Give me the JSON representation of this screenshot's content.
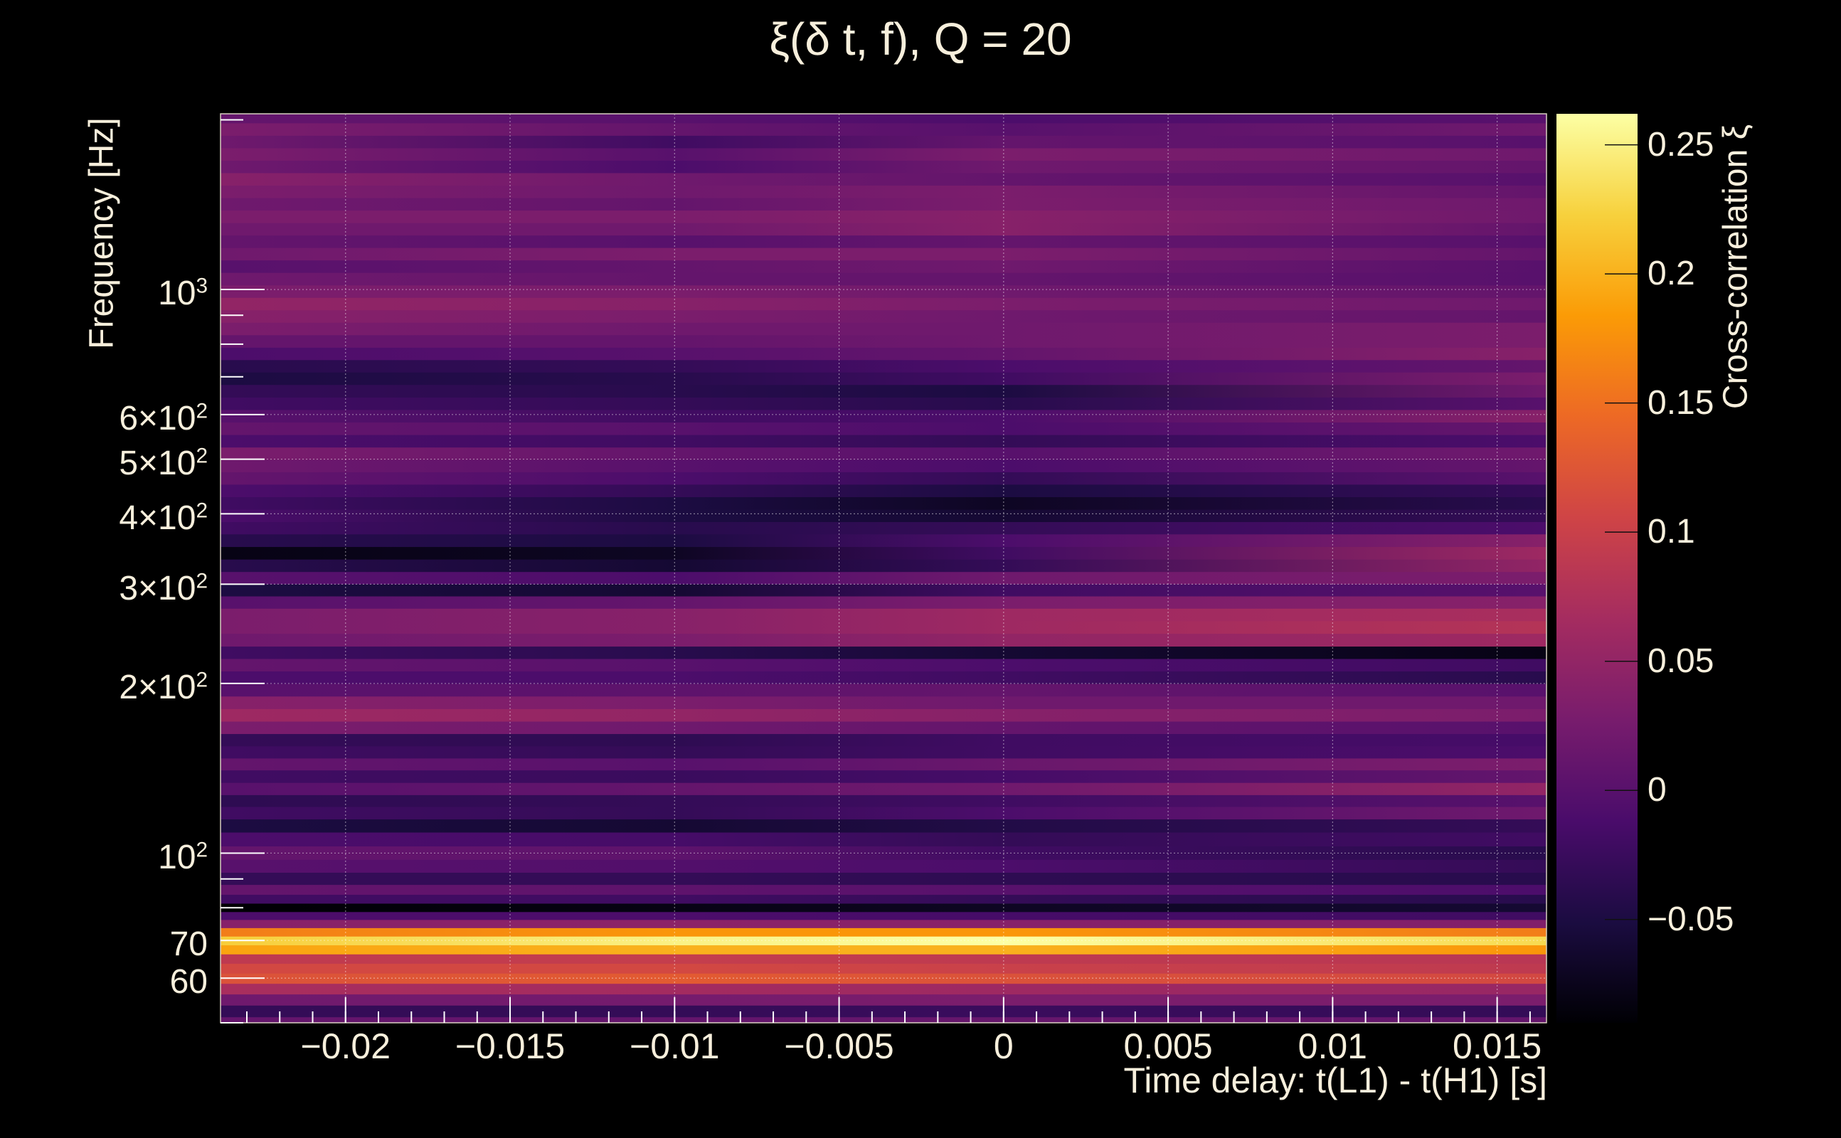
{
  "chart_data": {
    "type": "heatmap",
    "title": "ξ(δ t, f), Q = 20",
    "xlabel": "Time delay: t(L1) - t(H1) [s]",
    "ylabel": "Frequency [Hz]",
    "colorbar_label": "Cross-correlation ξ",
    "x_range": [
      -0.0238,
      0.0165
    ],
    "y_range": [
      50,
      2050
    ],
    "y_scale": "log",
    "z_range": [
      -0.09,
      0.262
    ],
    "colormap": [
      "#000004",
      "#1b0c41",
      "#4a0c6b",
      "#781c6d",
      "#a52c60",
      "#cf4446",
      "#ed6925",
      "#fb9b06",
      "#f7d13d",
      "#fcffa4"
    ],
    "grid": true,
    "x_ticks": [
      {
        "value": -0.02,
        "label": "−0.02"
      },
      {
        "value": -0.015,
        "label": "−0.015"
      },
      {
        "value": -0.01,
        "label": "−0.01"
      },
      {
        "value": -0.005,
        "label": "−0.005"
      },
      {
        "value": 0,
        "label": "0"
      },
      {
        "value": 0.005,
        "label": "0.005"
      },
      {
        "value": 0.01,
        "label": "0.01"
      },
      {
        "value": 0.015,
        "label": "0.015"
      }
    ],
    "y_ticks": [
      {
        "value": 60,
        "base": "60",
        "exp": ""
      },
      {
        "value": 70,
        "base": "70",
        "exp": ""
      },
      {
        "value": 100,
        "base": "10",
        "exp": "2"
      },
      {
        "value": 200,
        "base": "2×10",
        "exp": "2"
      },
      {
        "value": 300,
        "base": "3×10",
        "exp": "2"
      },
      {
        "value": 400,
        "base": "4×10",
        "exp": "2"
      },
      {
        "value": 500,
        "base": "5×10",
        "exp": "2"
      },
      {
        "value": 600,
        "base": "6×10",
        "exp": "2"
      },
      {
        "value": 1000,
        "base": "10",
        "exp": "3"
      }
    ],
    "colorbar_ticks": [
      {
        "value": -0.05,
        "label": "−0.05"
      },
      {
        "value": 0,
        "label": "0"
      },
      {
        "value": 0.05,
        "label": "0.05"
      },
      {
        "value": 0.1,
        "label": "0.1"
      },
      {
        "value": 0.15,
        "label": "0.15"
      },
      {
        "value": 0.2,
        "label": "0.2"
      },
      {
        "value": 0.25,
        "label": "0.25"
      }
    ],
    "bands": [
      {
        "f": 50,
        "values": [
          0.01,
          0.01,
          0.012,
          0.01
        ]
      },
      {
        "f": 52.5,
        "values": [
          -0.03,
          -0.03,
          -0.025,
          -0.03
        ]
      },
      {
        "f": 55,
        "values": [
          0.02,
          0.025,
          0.03,
          0.03
        ]
      },
      {
        "f": 57.5,
        "values": [
          0.07,
          0.065,
          0.06,
          0.055
        ]
      },
      {
        "f": 60,
        "values": [
          0.12,
          0.13,
          0.12,
          0.11
        ]
      },
      {
        "f": 62.5,
        "values": [
          0.11,
          0.11,
          0.1,
          0.09
        ]
      },
      {
        "f": 65,
        "values": [
          0.09,
          0.095,
          0.09,
          0.085
        ]
      },
      {
        "f": 67.5,
        "values": [
          0.19,
          0.2,
          0.2,
          0.18
        ]
      },
      {
        "f": 70,
        "values": [
          0.22,
          0.25,
          0.262,
          0.23
        ]
      },
      {
        "f": 72.5,
        "values": [
          0.16,
          0.18,
          0.18,
          0.16
        ]
      },
      {
        "f": 75,
        "values": [
          0.04,
          0.045,
          0.04,
          0.035
        ]
      },
      {
        "f": 77.5,
        "values": [
          -0.01,
          -0.01,
          -0.015,
          -0.02
        ]
      },
      {
        "f": 80,
        "values": [
          -0.09,
          -0.08,
          -0.07,
          -0.06
        ]
      },
      {
        "f": 83,
        "values": [
          -0.02,
          -0.02,
          -0.03,
          -0.04
        ]
      },
      {
        "f": 86,
        "values": [
          0.01,
          0.005,
          0.0,
          -0.01
        ]
      },
      {
        "f": 90,
        "values": [
          -0.03,
          -0.03,
          -0.035,
          -0.04
        ]
      },
      {
        "f": 95,
        "values": [
          0.0,
          -0.005,
          -0.01,
          -0.03
        ]
      },
      {
        "f": 100,
        "values": [
          0.01,
          0.005,
          -0.02,
          -0.04
        ]
      },
      {
        "f": 106,
        "values": [
          -0.01,
          -0.015,
          -0.03,
          -0.02
        ]
      },
      {
        "f": 112,
        "values": [
          -0.05,
          -0.06,
          -0.045,
          -0.03
        ]
      },
      {
        "f": 118,
        "values": [
          -0.02,
          -0.03,
          -0.01,
          0.02
        ]
      },
      {
        "f": 124,
        "values": [
          -0.035,
          -0.03,
          -0.02,
          0.0
        ]
      },
      {
        "f": 130,
        "values": [
          0.0,
          0.01,
          0.02,
          0.05
        ]
      },
      {
        "f": 137,
        "values": [
          -0.02,
          -0.025,
          -0.015,
          0.01
        ]
      },
      {
        "f": 144,
        "values": [
          0.01,
          0.0,
          0.015,
          0.03
        ]
      },
      {
        "f": 151,
        "values": [
          -0.02,
          -0.03,
          -0.02,
          -0.01
        ]
      },
      {
        "f": 159,
        "values": [
          -0.03,
          -0.035,
          -0.02,
          -0.015
        ]
      },
      {
        "f": 167,
        "values": [
          0.03,
          0.02,
          0.01,
          0.0
        ]
      },
      {
        "f": 176,
        "values": [
          0.06,
          0.05,
          0.04,
          0.03
        ]
      },
      {
        "f": 185,
        "values": [
          0.04,
          0.03,
          0.02,
          0.02
        ]
      },
      {
        "f": 195,
        "values": [
          0.0,
          0.005,
          0.01,
          0.0
        ]
      },
      {
        "f": 205,
        "values": [
          -0.01,
          -0.01,
          -0.02,
          -0.04
        ]
      },
      {
        "f": 216,
        "values": [
          0.01,
          0.0,
          -0.01,
          -0.02
        ]
      },
      {
        "f": 227,
        "values": [
          -0.02,
          -0.04,
          -0.06,
          -0.08
        ]
      },
      {
        "f": 239,
        "values": [
          0.02,
          0.03,
          0.05,
          0.06
        ]
      },
      {
        "f": 252,
        "values": [
          0.03,
          0.04,
          0.06,
          0.08
        ]
      },
      {
        "f": 265,
        "values": [
          0.03,
          0.04,
          0.06,
          0.07
        ]
      },
      {
        "f": 279,
        "values": [
          0.0,
          0.01,
          0.03,
          0.04
        ]
      },
      {
        "f": 293,
        "values": [
          -0.05,
          -0.06,
          -0.02,
          0.0
        ]
      },
      {
        "f": 308,
        "values": [
          0.0,
          -0.01,
          0.02,
          0.03
        ]
      },
      {
        "f": 324,
        "values": [
          -0.04,
          -0.06,
          -0.03,
          0.05
        ]
      },
      {
        "f": 341,
        "values": [
          -0.08,
          -0.07,
          -0.02,
          0.06
        ]
      },
      {
        "f": 359,
        "values": [
          -0.04,
          -0.05,
          -0.01,
          0.04
        ]
      },
      {
        "f": 378,
        "values": [
          -0.02,
          -0.04,
          -0.03,
          -0.01
        ]
      },
      {
        "f": 397,
        "values": [
          -0.01,
          -0.05,
          -0.06,
          -0.03
        ]
      },
      {
        "f": 418,
        "values": [
          -0.02,
          -0.05,
          -0.07,
          -0.04
        ]
      },
      {
        "f": 440,
        "values": [
          -0.01,
          -0.03,
          -0.05,
          -0.03
        ]
      },
      {
        "f": 463,
        "values": [
          0.01,
          -0.01,
          -0.03,
          0.0
        ]
      },
      {
        "f": 487,
        "values": [
          0.02,
          0.0,
          -0.01,
          0.01
        ]
      },
      {
        "f": 512,
        "values": [
          0.03,
          0.01,
          0.0,
          0.02
        ]
      },
      {
        "f": 539,
        "values": [
          -0.01,
          -0.02,
          -0.03,
          -0.01
        ]
      },
      {
        "f": 567,
        "values": [
          0.01,
          0.0,
          -0.01,
          0.01
        ]
      },
      {
        "f": 597,
        "values": [
          0.0,
          -0.02,
          -0.01,
          0.04
        ]
      },
      {
        "f": 628,
        "values": [
          -0.02,
          -0.03,
          -0.04,
          0.0
        ]
      },
      {
        "f": 661,
        "values": [
          -0.03,
          -0.04,
          -0.05,
          0.02
        ]
      },
      {
        "f": 696,
        "values": [
          -0.05,
          -0.04,
          -0.02,
          0.03
        ]
      },
      {
        "f": 732,
        "values": [
          -0.04,
          -0.03,
          -0.01,
          0.01
        ]
      },
      {
        "f": 770,
        "values": [
          -0.01,
          0.0,
          0.01,
          0.04
        ]
      },
      {
        "f": 810,
        "values": [
          0.01,
          0.01,
          0.02,
          0.03
        ]
      },
      {
        "f": 853,
        "values": [
          0.03,
          0.02,
          0.02,
          0.03
        ]
      },
      {
        "f": 897,
        "values": [
          0.04,
          0.03,
          0.02,
          0.01
        ]
      },
      {
        "f": 944,
        "values": [
          0.05,
          0.04,
          0.03,
          0.02
        ]
      },
      {
        "f": 993,
        "values": [
          0.03,
          0.03,
          0.02,
          0.01
        ]
      },
      {
        "f": 1045,
        "values": [
          0.02,
          0.01,
          0.01,
          0.0
        ]
      },
      {
        "f": 1100,
        "values": [
          0.0,
          0.01,
          0.02,
          0.0
        ]
      },
      {
        "f": 1157,
        "values": [
          0.02,
          0.03,
          0.03,
          0.01
        ]
      },
      {
        "f": 1218,
        "values": [
          0.01,
          0.0,
          0.01,
          0.0
        ]
      },
      {
        "f": 1281,
        "values": [
          0.02,
          0.02,
          0.04,
          0.01
        ]
      },
      {
        "f": 1348,
        "values": [
          0.03,
          0.03,
          0.04,
          0.02
        ]
      },
      {
        "f": 1419,
        "values": [
          0.02,
          0.01,
          0.03,
          0.02
        ]
      },
      {
        "f": 1493,
        "values": [
          0.03,
          0.02,
          0.03,
          0.01
        ]
      },
      {
        "f": 1571,
        "values": [
          0.04,
          0.02,
          0.01,
          0.0
        ]
      },
      {
        "f": 1653,
        "values": [
          0.02,
          -0.01,
          0.02,
          0.01
        ]
      },
      {
        "f": 1739,
        "values": [
          0.03,
          0.0,
          0.03,
          0.02
        ]
      },
      {
        "f": 1830,
        "values": [
          0.02,
          -0.02,
          0.01,
          0.0
        ]
      },
      {
        "f": 1926,
        "values": [
          0.03,
          0.01,
          0.0,
          0.02
        ]
      },
      {
        "f": 2026,
        "values": [
          0.01,
          0.0,
          -0.01,
          0.0
        ]
      }
    ],
    "band_x_nodes": [
      -0.0238,
      -0.01,
      0.0,
      0.0165
    ]
  }
}
